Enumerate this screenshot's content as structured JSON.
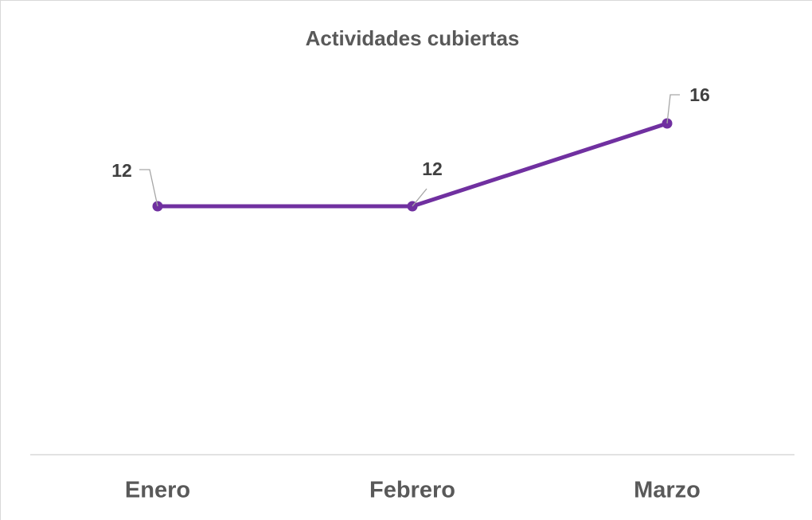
{
  "chart_data": {
    "type": "line",
    "title": "Actividades cubiertas",
    "categories": [
      "Enero",
      "Febrero",
      "Marzo"
    ],
    "series": [
      {
        "name": "Actividades cubiertas",
        "color": "#7030a0",
        "values": [
          12,
          12,
          16
        ]
      }
    ],
    "ylim": [
      0,
      20
    ],
    "grid": false,
    "legend": false
  }
}
